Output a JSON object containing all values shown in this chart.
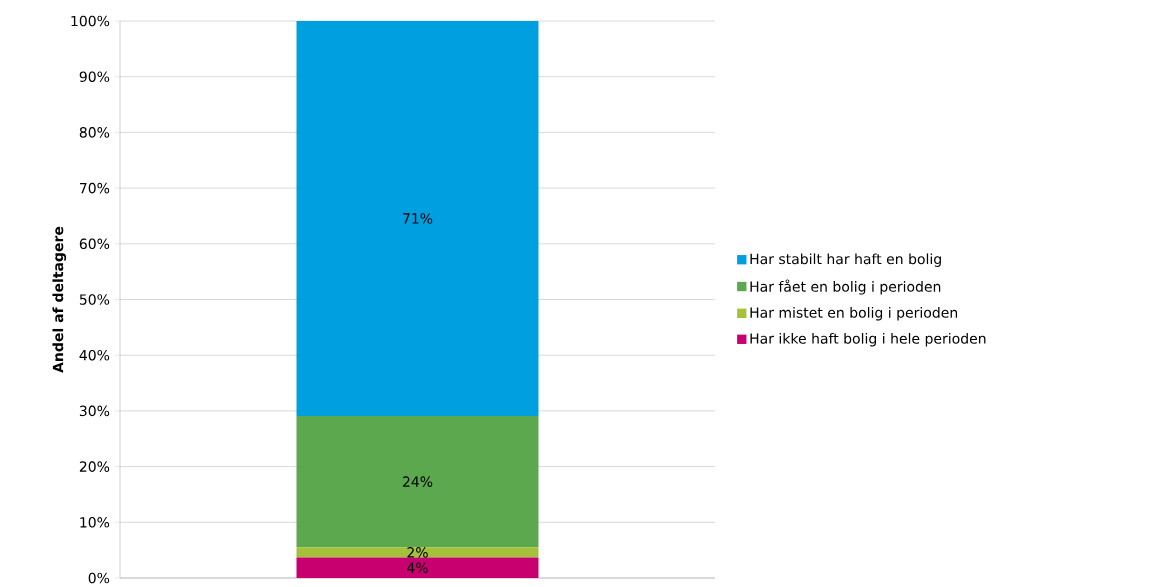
{
  "chart_data": {
    "type": "bar",
    "stacked": true,
    "ylabel": "Andel af deltagere",
    "categories": [
      null
    ],
    "series": [
      {
        "name": "Har ikke haft bolig i hele perioden",
        "color": "#c8006f",
        "values": [
          3.7
        ],
        "value_labels": [
          "4%"
        ]
      },
      {
        "name": "Har mistet en bolig i perioden",
        "color": "#a5c13a",
        "values": [
          1.8
        ],
        "value_labels": [
          "2%"
        ]
      },
      {
        "name": "Har fået en bolig i perioden",
        "color": "#5ba84f",
        "values": [
          23.6
        ],
        "value_labels": [
          "24%"
        ]
      },
      {
        "name": "Har stabilt har haft en bolig",
        "color": "#009fe0",
        "values": [
          70.9
        ],
        "value_labels": [
          "71%"
        ]
      }
    ],
    "ylim": [
      0,
      100
    ],
    "yticks": [
      {
        "value": 0,
        "label": "0%"
      },
      {
        "value": 10,
        "label": "10%"
      },
      {
        "value": 20,
        "label": "20%"
      },
      {
        "value": 30,
        "label": "30%"
      },
      {
        "value": 40,
        "label": "40%"
      },
      {
        "value": 50,
        "label": "50%"
      },
      {
        "value": 60,
        "label": "60%"
      },
      {
        "value": 70,
        "label": "70%"
      },
      {
        "value": 80,
        "label": "80%"
      },
      {
        "value": 90,
        "label": "90%"
      },
      {
        "value": 100,
        "label": "100%"
      }
    ],
    "grid": "y",
    "legend": "right"
  }
}
